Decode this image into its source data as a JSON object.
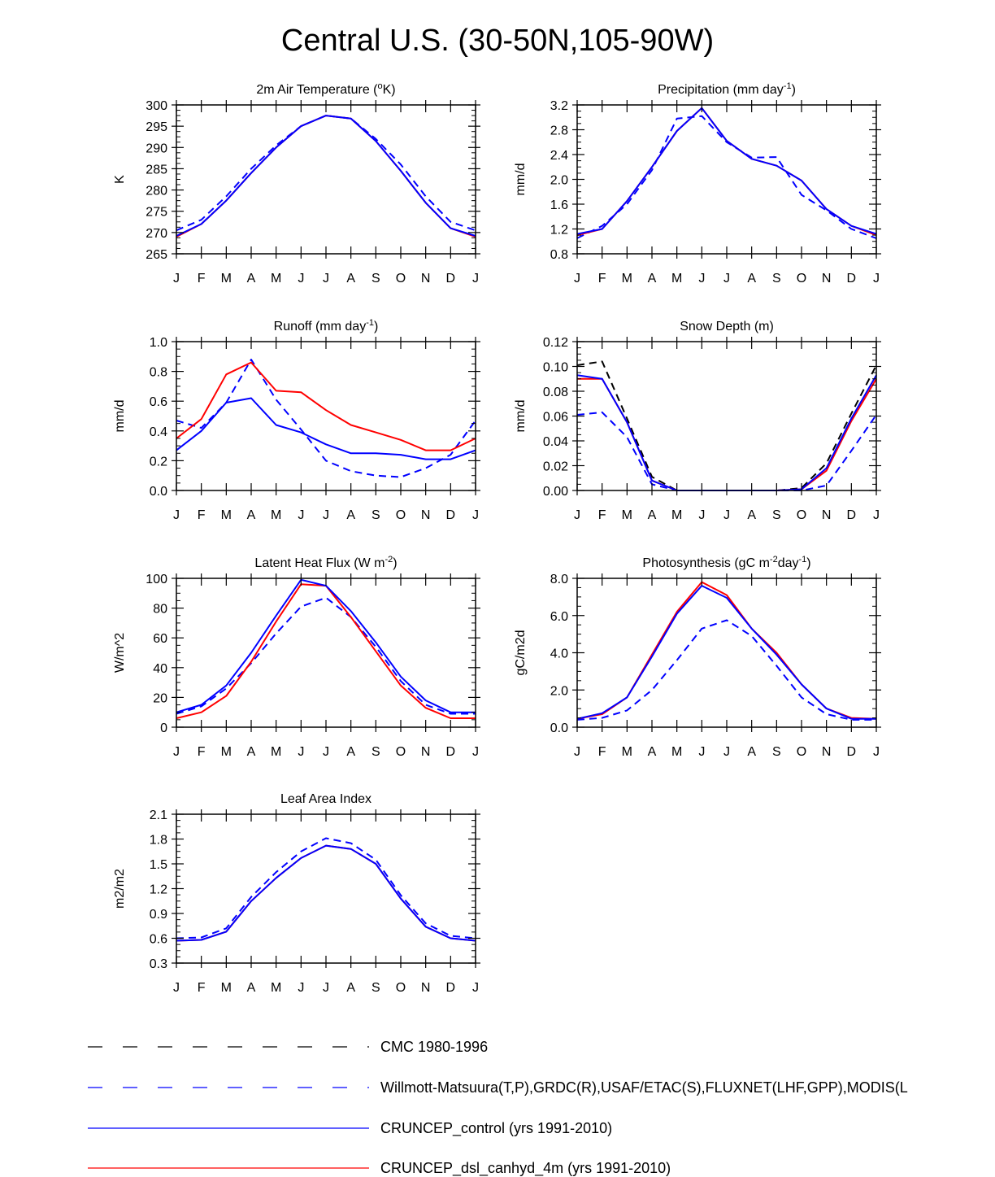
{
  "figure_title": "Central U.S. (30-50N,105-90W)",
  "months": [
    "J",
    "F",
    "M",
    "A",
    "M",
    "J",
    "J",
    "A",
    "S",
    "O",
    "N",
    "D",
    "J"
  ],
  "colors": {
    "cmc": "#000000",
    "obs": "#0000ff",
    "control": "#0000ff",
    "dsl": "#ff0000",
    "axis": "#000000"
  },
  "legend": [
    {
      "key": "cmc",
      "label": "CMC 1980-1996",
      "color": "#000000",
      "dash": true
    },
    {
      "key": "obs",
      "label": "Willmott-Matsuura(T,P),GRDC(R),USAF/ETAC(S),FLUXNET(LHF,GPP),MODIS(L",
      "color": "#0000ff",
      "dash": true
    },
    {
      "key": "control",
      "label": "CRUNCEP_control (yrs 1991-2010)",
      "color": "#0000ff",
      "dash": false
    },
    {
      "key": "dsl",
      "label": "CRUNCEP_dsl_canhyd_4m (yrs 1991-2010)",
      "color": "#ff0000",
      "dash": false
    }
  ],
  "chart_data": [
    {
      "id": "tair",
      "type": "line",
      "title": "2m Air Temperature (",
      "title_sup": "o",
      "title_after": "K)",
      "ylabel": "K",
      "ylim": [
        265,
        300
      ],
      "yticks": [
        265,
        270,
        275,
        280,
        285,
        290,
        295,
        300
      ],
      "ytick_labels": [
        "265",
        "270",
        "275",
        "280",
        "285",
        "290",
        "295",
        "300"
      ],
      "series": [
        {
          "name": "obs",
          "style": "dash",
          "color": "#0000ff",
          "values": [
            270.5,
            273.0,
            278.5,
            285.0,
            290.5,
            295.0,
            297.5,
            296.8,
            292.0,
            286.0,
            278.5,
            272.5,
            270.5
          ]
        },
        {
          "name": "dsl",
          "style": "solid",
          "color": "#ff0000",
          "values": [
            269.0,
            272.0,
            277.5,
            284.0,
            290.0,
            295.0,
            297.5,
            296.8,
            291.5,
            284.5,
            277.0,
            271.0,
            269.0
          ]
        },
        {
          "name": "control",
          "style": "solid",
          "color": "#0000ff",
          "values": [
            269.2,
            272.0,
            277.5,
            284.0,
            290.0,
            295.0,
            297.5,
            296.8,
            291.5,
            284.5,
            277.0,
            271.0,
            269.2
          ]
        }
      ]
    },
    {
      "id": "precip",
      "type": "line",
      "title": "Precipitation (mm day",
      "title_sup": "-1",
      "title_after": ")",
      "ylabel": "mm/d",
      "ylim": [
        0.8,
        3.2
      ],
      "yticks": [
        0.8,
        1.2,
        1.6,
        2.0,
        2.4,
        2.8,
        3.2
      ],
      "ytick_labels": [
        "0.8",
        "1.2",
        "1.6",
        "2.0",
        "2.4",
        "2.8",
        "3.2"
      ],
      "series": [
        {
          "name": "obs",
          "style": "dash",
          "color": "#0000ff",
          "values": [
            1.05,
            1.25,
            1.6,
            2.15,
            2.98,
            3.02,
            2.6,
            2.35,
            2.36,
            1.75,
            1.5,
            1.2,
            1.05
          ]
        },
        {
          "name": "dsl",
          "style": "solid",
          "color": "#ff0000",
          "values": [
            1.1,
            1.2,
            1.65,
            2.2,
            2.78,
            3.15,
            2.62,
            2.33,
            2.22,
            1.98,
            1.52,
            1.25,
            1.1
          ]
        },
        {
          "name": "control",
          "style": "solid",
          "color": "#0000ff",
          "values": [
            1.12,
            1.2,
            1.65,
            2.2,
            2.78,
            3.15,
            2.62,
            2.33,
            2.22,
            1.98,
            1.52,
            1.25,
            1.12
          ]
        }
      ]
    },
    {
      "id": "runoff",
      "type": "line",
      "title": "Runoff (mm day",
      "title_sup": "-1",
      "title_after": ")",
      "ylabel": "mm/d",
      "ylim": [
        0.0,
        1.0
      ],
      "yticks": [
        0.0,
        0.2,
        0.4,
        0.6,
        0.8,
        1.0
      ],
      "ytick_labels": [
        "0.0",
        "0.2",
        "0.4",
        "0.6",
        "0.8",
        "1.0"
      ],
      "series": [
        {
          "name": "obs",
          "style": "dash",
          "color": "#0000ff",
          "values": [
            0.47,
            0.42,
            0.59,
            0.88,
            0.61,
            0.41,
            0.2,
            0.13,
            0.1,
            0.09,
            0.15,
            0.24,
            0.47
          ]
        },
        {
          "name": "dsl",
          "style": "solid",
          "color": "#ff0000",
          "values": [
            0.35,
            0.48,
            0.78,
            0.86,
            0.67,
            0.66,
            0.54,
            0.44,
            0.39,
            0.34,
            0.27,
            0.27,
            0.35
          ]
        },
        {
          "name": "control",
          "style": "solid",
          "color": "#0000ff",
          "values": [
            0.27,
            0.4,
            0.59,
            0.62,
            0.44,
            0.39,
            0.31,
            0.25,
            0.25,
            0.24,
            0.21,
            0.21,
            0.27
          ]
        }
      ]
    },
    {
      "id": "snow",
      "type": "line",
      "title": "Snow Depth (m)",
      "title_sup": "",
      "title_after": "",
      "ylabel": "mm/d",
      "ylim": [
        0.0,
        0.12
      ],
      "yticks": [
        0.0,
        0.02,
        0.04,
        0.06,
        0.08,
        0.1,
        0.12
      ],
      "ytick_labels": [
        "0.00",
        "0.02",
        "0.04",
        "0.06",
        "0.08",
        "0.10",
        "0.12"
      ],
      "series": [
        {
          "name": "cmc",
          "style": "dash",
          "color": "#000000",
          "values": [
            0.101,
            0.104,
            0.058,
            0.011,
            0.0,
            0.0,
            0.0,
            0.0,
            0.0,
            0.002,
            0.022,
            0.062,
            0.101
          ]
        },
        {
          "name": "obs",
          "style": "dash",
          "color": "#0000ff",
          "values": [
            0.061,
            0.063,
            0.043,
            0.005,
            0.0,
            0.0,
            0.0,
            0.0,
            0.0,
            0.0,
            0.004,
            0.032,
            0.061
          ]
        },
        {
          "name": "dsl",
          "style": "solid",
          "color": "#ff0000",
          "values": [
            0.09,
            0.09,
            0.055,
            0.008,
            0.0,
            0.0,
            0.0,
            0.0,
            0.0,
            0.001,
            0.016,
            0.056,
            0.09
          ]
        },
        {
          "name": "control",
          "style": "solid",
          "color": "#0000ff",
          "values": [
            0.093,
            0.09,
            0.055,
            0.008,
            0.0,
            0.0,
            0.0,
            0.0,
            0.0,
            0.001,
            0.018,
            0.058,
            0.093
          ]
        }
      ]
    },
    {
      "id": "lhf",
      "type": "line",
      "title": "Latent Heat Flux (W m",
      "title_sup": "-2",
      "title_after": ")",
      "ylabel": "W/m^2",
      "ylim": [
        0,
        100
      ],
      "yticks": [
        0,
        20,
        40,
        60,
        80,
        100
      ],
      "ytick_labels": [
        "0",
        "20",
        "40",
        "60",
        "80",
        "100"
      ],
      "series": [
        {
          "name": "obs",
          "style": "dash",
          "color": "#0000ff",
          "values": [
            9,
            14,
            26,
            43,
            63,
            81,
            87,
            74,
            54,
            31,
            15,
            9,
            9
          ]
        },
        {
          "name": "dsl",
          "style": "solid",
          "color": "#ff0000",
          "values": [
            6,
            10,
            21,
            44,
            71,
            96,
            95,
            74,
            51,
            28,
            13,
            6,
            6
          ]
        },
        {
          "name": "control",
          "style": "solid",
          "color": "#0000ff",
          "values": [
            10,
            15,
            28,
            50,
            75,
            99,
            95,
            78,
            57,
            34,
            18,
            10,
            10
          ]
        }
      ]
    },
    {
      "id": "gpp",
      "type": "line",
      "title": "Photosynthesis (gC m",
      "title_sup": "-2",
      "title_after": "day",
      "title_sup2": "-1",
      "title_after2": ")",
      "ylabel": "gC/m2d",
      "ylim": [
        0.0,
        8.0
      ],
      "yticks": [
        0,
        2,
        4,
        6,
        8
      ],
      "ytick_labels": [
        "0.0",
        "2.0",
        "4.0",
        "6.0",
        "8.0"
      ],
      "series": [
        {
          "name": "obs",
          "style": "dash",
          "color": "#0000ff",
          "values": [
            0.4,
            0.5,
            0.9,
            2.0,
            3.6,
            5.3,
            5.75,
            4.9,
            3.3,
            1.6,
            0.7,
            0.4,
            0.4
          ]
        },
        {
          "name": "dsl",
          "style": "solid",
          "color": "#ff0000",
          "values": [
            0.45,
            0.7,
            1.6,
            3.9,
            6.2,
            7.8,
            7.1,
            5.3,
            4.0,
            2.3,
            1.0,
            0.5,
            0.45
          ]
        },
        {
          "name": "control",
          "style": "solid",
          "color": "#0000ff",
          "values": [
            0.45,
            0.75,
            1.6,
            3.8,
            6.1,
            7.6,
            6.95,
            5.3,
            3.9,
            2.3,
            1.0,
            0.45,
            0.45
          ]
        }
      ]
    },
    {
      "id": "lai",
      "type": "line",
      "title": "Leaf Area Index",
      "title_sup": "",
      "title_after": "",
      "ylabel": "m2/m2",
      "ylim": [
        0.3,
        2.1
      ],
      "yticks": [
        0.3,
        0.6,
        0.9,
        1.2,
        1.5,
        1.8,
        2.1
      ],
      "ytick_labels": [
        "0.3",
        "0.6",
        "0.9",
        "1.2",
        "1.5",
        "1.8",
        "2.1"
      ],
      "series": [
        {
          "name": "obs",
          "style": "dash",
          "color": "#0000ff",
          "values": [
            0.6,
            0.61,
            0.72,
            1.1,
            1.4,
            1.65,
            1.81,
            1.75,
            1.55,
            1.12,
            0.78,
            0.63,
            0.6
          ]
        },
        {
          "name": "dsl",
          "style": "solid",
          "color": "#ff0000",
          "values": [
            0.57,
            0.58,
            0.68,
            1.05,
            1.33,
            1.57,
            1.72,
            1.68,
            1.5,
            1.08,
            0.74,
            0.6,
            0.57
          ]
        },
        {
          "name": "control",
          "style": "solid",
          "color": "#0000ff",
          "values": [
            0.57,
            0.58,
            0.68,
            1.05,
            1.33,
            1.57,
            1.72,
            1.68,
            1.5,
            1.08,
            0.74,
            0.6,
            0.57
          ]
        }
      ]
    }
  ]
}
